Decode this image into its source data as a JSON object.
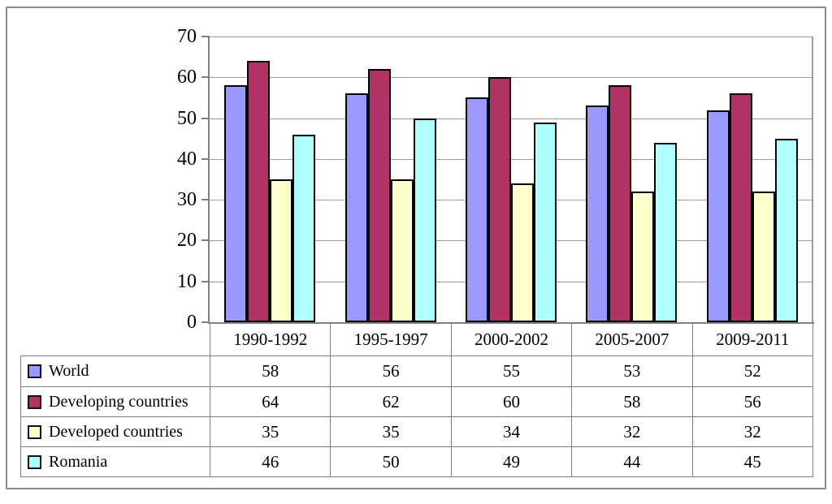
{
  "chart_data": {
    "type": "bar",
    "categories": [
      "1990-1992",
      "1995-1997",
      "2000-2002",
      "2005-2007",
      "2009-2011"
    ],
    "series": [
      {
        "name": "World",
        "color": "#9999FF",
        "values": [
          58,
          56,
          55,
          53,
          52
        ]
      },
      {
        "name": "Developing countries",
        "color": "#B13366",
        "values": [
          64,
          62,
          60,
          58,
          56
        ]
      },
      {
        "name": "Developed countries",
        "color": "#FFFFCC",
        "values": [
          35,
          35,
          34,
          32,
          32
        ]
      },
      {
        "name": "Romania",
        "color": "#AFFFFF",
        "values": [
          46,
          50,
          49,
          44,
          45
        ]
      }
    ],
    "ylim": [
      0,
      70
    ],
    "yticks": [
      0,
      10,
      20,
      30,
      40,
      50,
      60,
      70
    ],
    "grid": true,
    "legend_position": "bottom-table",
    "colors": {
      "bar_border": "#000000",
      "gridline": "#9C9C9C",
      "axis": "#808080",
      "table_border": "#808080",
      "frame_border": "#8C8C8C",
      "background": "#FFFFFF"
    }
  }
}
